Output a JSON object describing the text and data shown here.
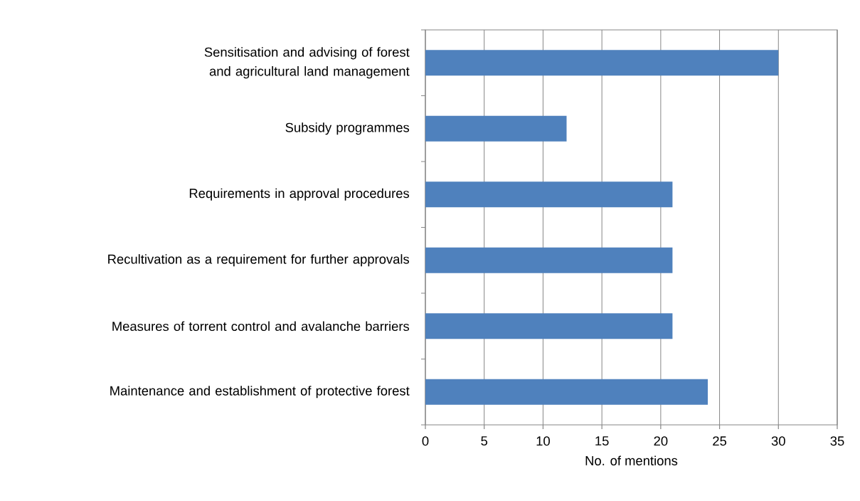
{
  "chart_data": {
    "type": "bar",
    "orientation": "horizontal",
    "xlabel": "No. of mentions",
    "categories": [
      "Sensitisation and advising of forest and agricultural land management",
      "Subsidy programmes",
      "Requirements in approval procedures",
      "Recultivation as a requirement for further approvals",
      "Measures of torrent control and avalanche barriers",
      "Maintenance and establishment of protective forest"
    ],
    "values": [
      30,
      12,
      21,
      21,
      21,
      24
    ],
    "color": "#4f81bd",
    "xlim": [
      0,
      35
    ],
    "xticks": [
      0,
      5,
      10,
      15,
      20,
      25,
      30,
      35
    ],
    "grid": "x"
  }
}
